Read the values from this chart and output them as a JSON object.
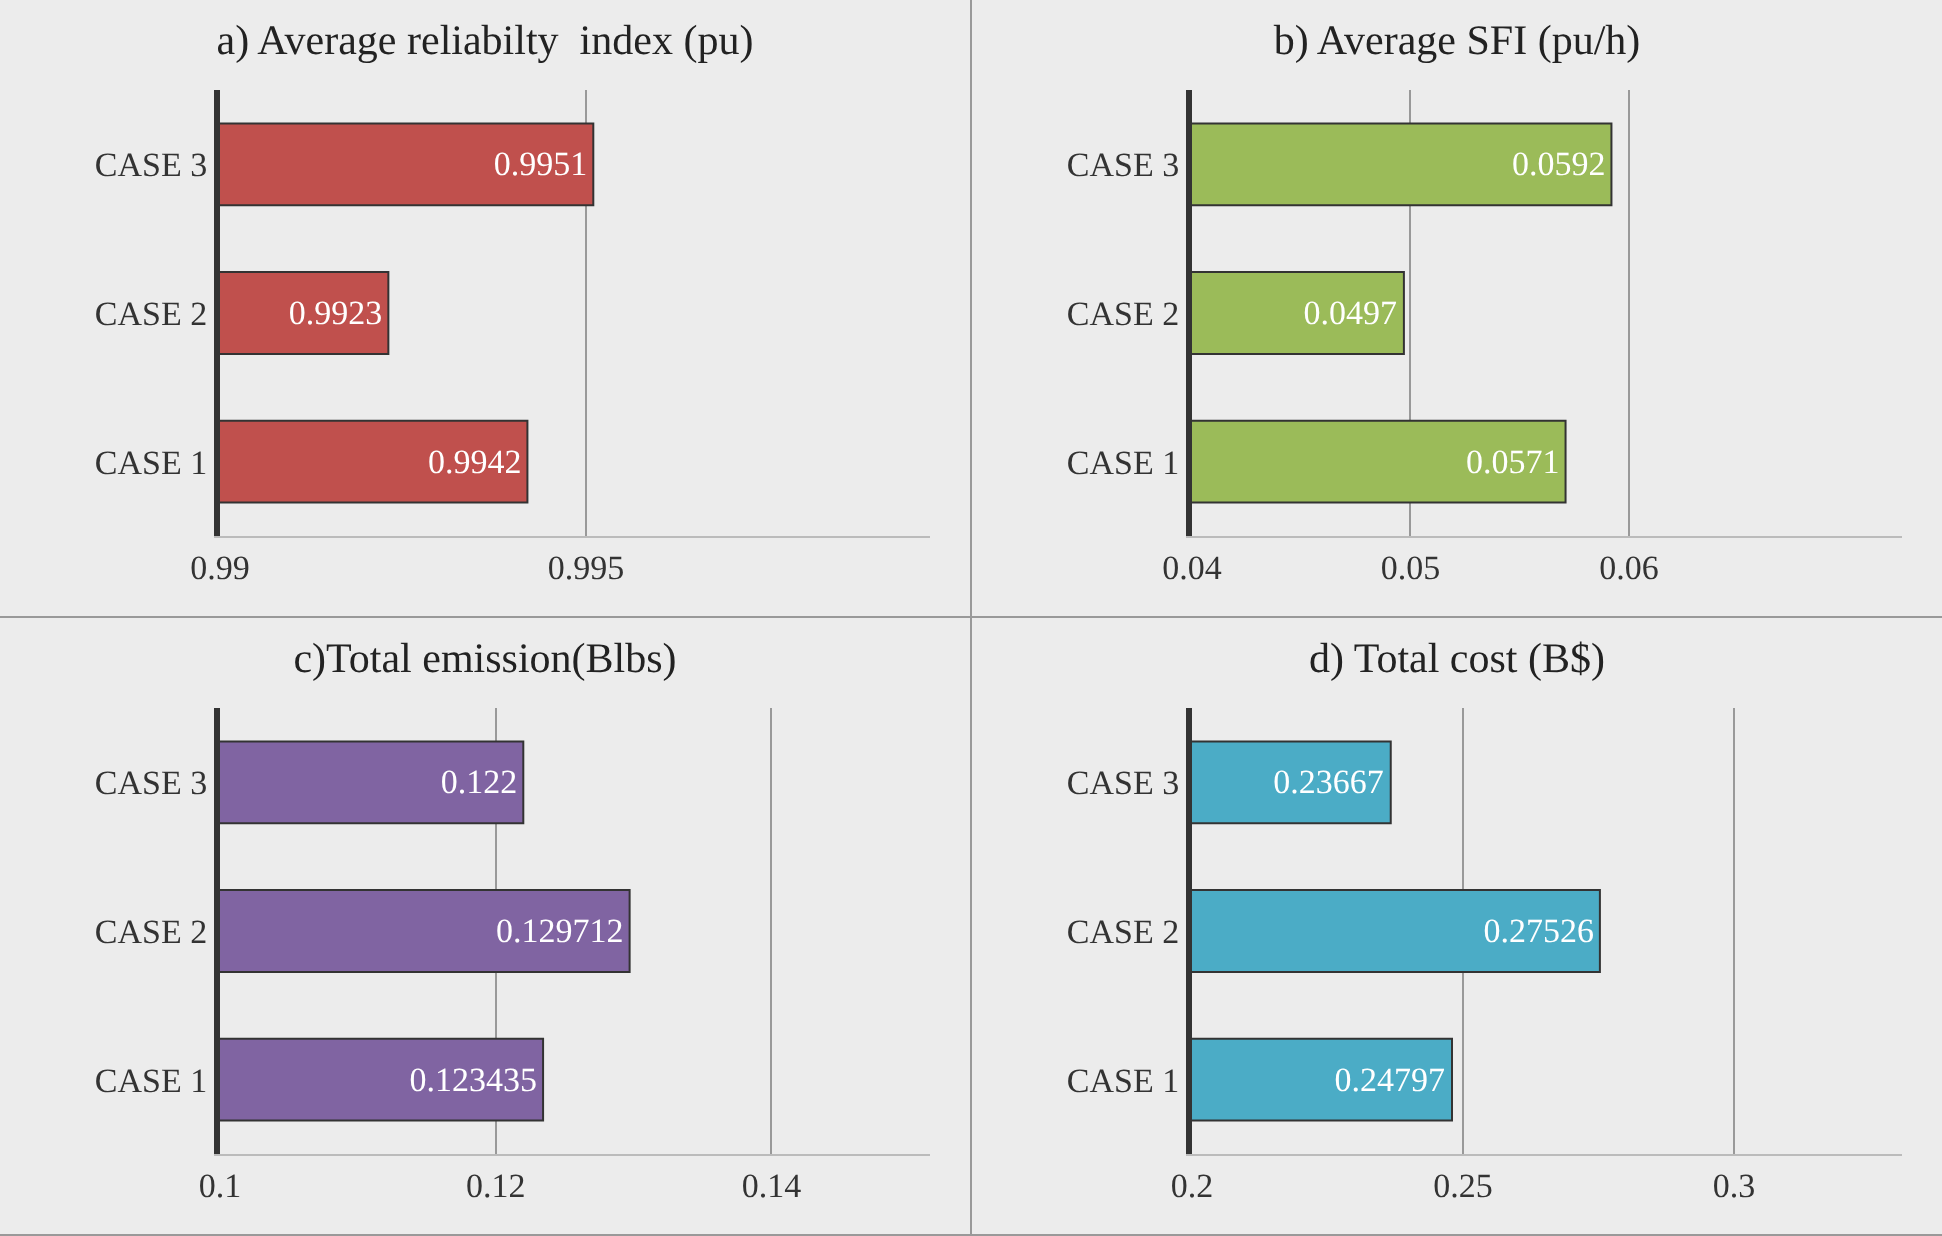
{
  "chart_data": [
    {
      "type": "bar",
      "orientation": "horizontal",
      "title": "a) Average reliabilty  index (pu)",
      "categories": [
        "CASE 3",
        "CASE 2",
        "CASE 1"
      ],
      "values": [
        0.9951,
        0.9923,
        0.9942
      ],
      "color": "#c0504d",
      "xlim": [
        0.99,
        0.9997
      ],
      "xticks": [
        0.99,
        0.995
      ],
      "grid": "x",
      "data_labels": true
    },
    {
      "type": "bar",
      "orientation": "horizontal",
      "title": "b) Average SFI (pu/h)",
      "categories": [
        "CASE 3",
        "CASE 2",
        "CASE 1"
      ],
      "values": [
        0.0592,
        0.0497,
        0.0571
      ],
      "color": "#9bbb59",
      "xlim": [
        0.04,
        0.0725
      ],
      "xticks": [
        0.04,
        0.05,
        0.06
      ],
      "grid": "x",
      "data_labels": true
    },
    {
      "type": "bar",
      "orientation": "horizontal",
      "title": "c)Total emission(Blbs)",
      "categories": [
        "CASE 3",
        "CASE 2",
        "CASE 1"
      ],
      "values": [
        0.122,
        0.129712,
        0.123435
      ],
      "color": "#8064a2",
      "xlim": [
        0.1,
        0.1515
      ],
      "xticks": [
        0.1,
        0.12,
        0.14
      ],
      "grid": "x",
      "data_labels": true
    },
    {
      "type": "bar",
      "orientation": "horizontal",
      "title": "d) Total cost (B$)",
      "categories": [
        "CASE 3",
        "CASE 2",
        "CASE 1"
      ],
      "values": [
        0.23667,
        0.27526,
        0.24797
      ],
      "color": "#4bacc6",
      "xlim": [
        0.2,
        0.331
      ],
      "xticks": [
        0.2,
        0.25,
        0.3
      ],
      "grid": "x",
      "data_labels": true
    }
  ]
}
